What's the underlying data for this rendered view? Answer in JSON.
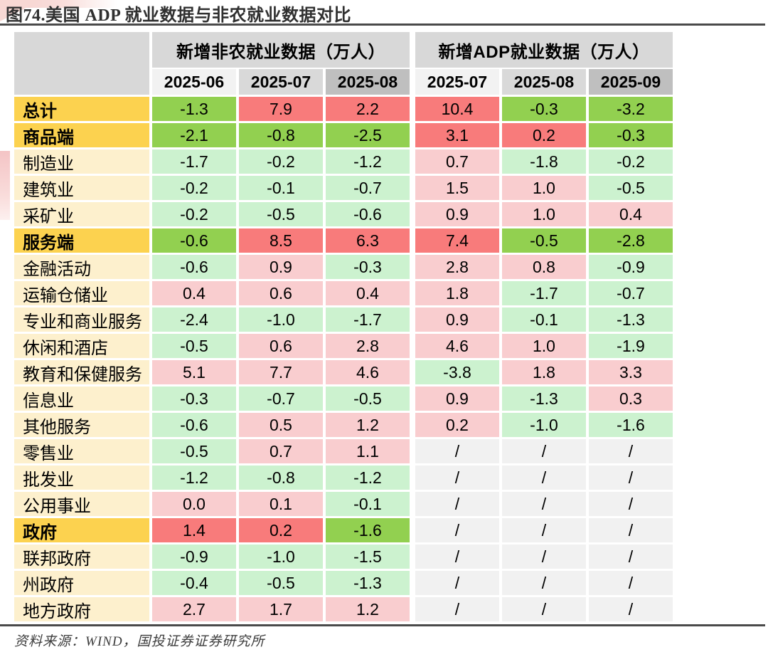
{
  "title": "图74.美国 ADP 就业数据与非农就业数据对比",
  "source": "资料来源：WIND，国投证券证券研究所",
  "colors": {
    "strong_green": "#92d050",
    "strong_red": "#f87b7b",
    "light_green": "#ccf2cf",
    "light_pink": "#f9cdcf",
    "na_gray": "#f1f1f1",
    "gold": "#fcd24f",
    "cream": "#fdf0cd",
    "header_gray": "#d8d8d8",
    "month_shades": [
      "#f2f2f2",
      "#d9d9d9",
      "#bfbfbf"
    ],
    "rule": "#4a4a4a",
    "watermark_pink": "#f6d1ce"
  },
  "table": {
    "groups": [
      {
        "label": "新增非农就业数据（万人）",
        "months": [
          "2025-06",
          "2025-07",
          "2025-08"
        ]
      },
      {
        "label": "新增ADP就业数据（万人）",
        "months": [
          "2025-07",
          "2025-08",
          "2025-09"
        ]
      }
    ],
    "fill_legend": {
      "G": "strong_green",
      "R": "strong_red",
      "g": "light_green",
      "p": "light_pink",
      "n": "na_gray"
    },
    "rows": [
      {
        "label": "总计",
        "bold": true,
        "values": [
          "-1.3",
          "7.9",
          "2.2",
          "10.4",
          "-0.3",
          "-3.2"
        ],
        "fills": [
          "G",
          "R",
          "R",
          "R",
          "G",
          "G"
        ]
      },
      {
        "label": "商品端",
        "bold": true,
        "values": [
          "-2.1",
          "-0.8",
          "-2.5",
          "3.1",
          "0.2",
          "-0.3"
        ],
        "fills": [
          "G",
          "G",
          "G",
          "R",
          "R",
          "G"
        ]
      },
      {
        "label": "制造业",
        "bold": false,
        "values": [
          "-1.7",
          "-0.2",
          "-1.2",
          "0.7",
          "-1.8",
          "-0.2"
        ],
        "fills": [
          "g",
          "g",
          "g",
          "p",
          "g",
          "g"
        ]
      },
      {
        "label": "建筑业",
        "bold": false,
        "values": [
          "-0.2",
          "-0.1",
          "-0.7",
          "1.5",
          "1.0",
          "-0.5"
        ],
        "fills": [
          "g",
          "g",
          "g",
          "p",
          "p",
          "g"
        ]
      },
      {
        "label": "采矿业",
        "bold": false,
        "values": [
          "-0.2",
          "-0.5",
          "-0.6",
          "0.9",
          "1.0",
          "0.4"
        ],
        "fills": [
          "g",
          "g",
          "g",
          "p",
          "p",
          "p"
        ]
      },
      {
        "label": "服务端",
        "bold": true,
        "values": [
          "-0.6",
          "8.5",
          "6.3",
          "7.4",
          "-0.5",
          "-2.8"
        ],
        "fills": [
          "G",
          "R",
          "R",
          "R",
          "G",
          "G"
        ]
      },
      {
        "label": "金融活动",
        "bold": false,
        "values": [
          "-0.6",
          "0.9",
          "-0.3",
          "2.8",
          "0.8",
          "-0.9"
        ],
        "fills": [
          "g",
          "p",
          "g",
          "p",
          "p",
          "g"
        ]
      },
      {
        "label": "运输仓储业",
        "bold": false,
        "values": [
          "0.4",
          "0.6",
          "0.4",
          "1.8",
          "-1.7",
          "-0.7"
        ],
        "fills": [
          "p",
          "p",
          "p",
          "p",
          "g",
          "g"
        ]
      },
      {
        "label": "专业和商业服务",
        "bold": false,
        "values": [
          "-2.4",
          "-1.0",
          "-1.7",
          "0.9",
          "-0.1",
          "-1.3"
        ],
        "fills": [
          "g",
          "g",
          "g",
          "p",
          "g",
          "g"
        ]
      },
      {
        "label": "休闲和酒店",
        "bold": false,
        "values": [
          "-0.5",
          "0.6",
          "2.8",
          "4.6",
          "1.0",
          "-1.9"
        ],
        "fills": [
          "g",
          "p",
          "p",
          "p",
          "p",
          "g"
        ]
      },
      {
        "label": "教育和保健服务",
        "bold": false,
        "values": [
          "5.1",
          "7.7",
          "4.6",
          "-3.8",
          "1.8",
          "3.3"
        ],
        "fills": [
          "p",
          "p",
          "p",
          "g",
          "p",
          "p"
        ]
      },
      {
        "label": "信息业",
        "bold": false,
        "values": [
          "-0.3",
          "-0.7",
          "-0.5",
          "0.9",
          "-1.3",
          "0.3"
        ],
        "fills": [
          "g",
          "g",
          "g",
          "p",
          "g",
          "p"
        ]
      },
      {
        "label": "其他服务",
        "bold": false,
        "values": [
          "-0.6",
          "0.5",
          "1.2",
          "0.2",
          "-1.0",
          "-1.6"
        ],
        "fills": [
          "g",
          "p",
          "p",
          "p",
          "g",
          "g"
        ]
      },
      {
        "label": "零售业",
        "bold": false,
        "values": [
          "-0.5",
          "0.7",
          "1.1",
          "/",
          "/",
          "/"
        ],
        "fills": [
          "g",
          "p",
          "p",
          "n",
          "n",
          "n"
        ]
      },
      {
        "label": "批发业",
        "bold": false,
        "values": [
          "-1.2",
          "-0.8",
          "-1.2",
          "/",
          "/",
          "/"
        ],
        "fills": [
          "g",
          "g",
          "g",
          "n",
          "n",
          "n"
        ]
      },
      {
        "label": "公用事业",
        "bold": false,
        "values": [
          "0.0",
          "0.1",
          "-0.1",
          "/",
          "/",
          "/"
        ],
        "fills": [
          "p",
          "p",
          "g",
          "n",
          "n",
          "n"
        ]
      },
      {
        "label": "政府",
        "bold": true,
        "values": [
          "1.4",
          "0.2",
          "-1.6",
          "/",
          "/",
          "/"
        ],
        "fills": [
          "R",
          "R",
          "G",
          "n",
          "n",
          "n"
        ]
      },
      {
        "label": "联邦政府",
        "bold": false,
        "values": [
          "-0.9",
          "-1.0",
          "-1.5",
          "/",
          "/",
          "/"
        ],
        "fills": [
          "g",
          "g",
          "g",
          "n",
          "n",
          "n"
        ]
      },
      {
        "label": "州政府",
        "bold": false,
        "values": [
          "-0.4",
          "-0.5",
          "-1.3",
          "/",
          "/",
          "/"
        ],
        "fills": [
          "g",
          "g",
          "g",
          "n",
          "n",
          "n"
        ]
      },
      {
        "label": "地方政府",
        "bold": false,
        "values": [
          "2.7",
          "1.7",
          "1.2",
          "/",
          "/",
          "/"
        ],
        "fills": [
          "p",
          "p",
          "p",
          "n",
          "n",
          "n"
        ]
      }
    ]
  }
}
